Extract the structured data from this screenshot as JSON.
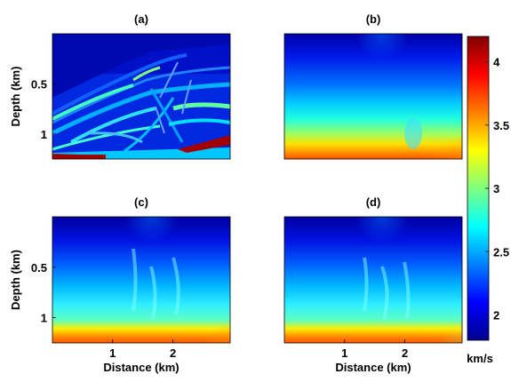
{
  "chart_data": {
    "type": "heatmap",
    "panels": [
      {
        "id": "a",
        "title": "(a)",
        "ylabel": "Depth (km)",
        "xlabel": "",
        "yticks": [
          "0.5",
          "1"
        ],
        "xticks": [],
        "content": "true velocity model"
      },
      {
        "id": "b",
        "title": "(b)",
        "ylabel": "",
        "xlabel": "",
        "yticks": [],
        "xticks": [],
        "content": "smooth initial model"
      },
      {
        "id": "c",
        "title": "(c)",
        "ylabel": "Depth (km)",
        "xlabel": "Distance (km)",
        "yticks": [
          "0.5",
          "1"
        ],
        "xticks": [
          "1",
          "2"
        ],
        "content": "inverted model"
      },
      {
        "id": "d",
        "title": "(d)",
        "ylabel": "",
        "xlabel": "Distance (km)",
        "yticks": [],
        "xticks": [
          "1",
          "2"
        ],
        "content": "inverted model"
      }
    ],
    "x_range_km": [
      0,
      2.95
    ],
    "y_range_km": [
      0,
      1.25
    ],
    "ytick_values_km": [
      0.5,
      1.0
    ],
    "xtick_values_km": [
      1,
      2
    ],
    "colorbar": {
      "label": "km/s",
      "ticks": [
        "2",
        "2.5",
        "3",
        "3.5",
        "4"
      ],
      "tick_values": [
        2,
        2.5,
        3,
        3.5,
        4
      ],
      "range": [
        1.8,
        4.2
      ],
      "colormap": "jet",
      "colors": [
        "#00008f",
        "#0000ff",
        "#0080ff",
        "#00ffff",
        "#80ff80",
        "#ffff00",
        "#ff8000",
        "#ff0000",
        "#800000"
      ]
    }
  }
}
